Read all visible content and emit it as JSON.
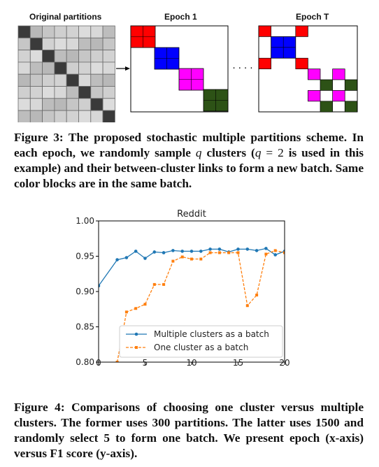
{
  "figure3": {
    "panel_titles": [
      "Original partitions",
      "Epoch 1",
      "Epoch T"
    ],
    "ellipsis": "· · · ·",
    "colors": {
      "red": "#ff0000",
      "blue": "#0000ff",
      "magenta": "#ff00ff",
      "green": "#2d5216",
      "dark": "#3a3a3a"
    },
    "caption": {
      "label": "Figure 3:",
      "part1": " The proposed stochastic multiple partitions scheme. In each epoch, we randomly sample ",
      "q1": "q",
      "part2": " clusters (",
      "q2": "q",
      "eq": " = 2",
      "part3": " is used in this example) and their between-cluster links to form a new batch. Same color blocks are in the same batch."
    }
  },
  "figure4": {
    "caption": "Figure 4: Comparisons of choosing one cluster versus multiple clusters. The former uses 300 partitions. The latter uses 1500 and randomly select 5 to form one batch. We present epoch (x-axis) versus F1 score (y-axis)."
  },
  "chart_data": {
    "type": "line",
    "title": "Reddit",
    "xlabel": "",
    "ylabel": "",
    "xlim": [
      0,
      20
    ],
    "ylim": [
      0.8,
      1.0
    ],
    "x_ticks": [
      "0",
      "5",
      "10",
      "15",
      "20"
    ],
    "y_ticks": [
      "0.80",
      "0.85",
      "0.90",
      "0.95",
      "1.00"
    ],
    "grid": false,
    "legend_position": "lower-right",
    "series": [
      {
        "name": "Multiple clusters as a batch",
        "color": "#1f77b4",
        "style": "solid",
        "marker": "circle",
        "x": [
          0,
          2,
          3,
          4,
          5,
          6,
          7,
          8,
          9,
          10,
          11,
          12,
          13,
          14,
          15,
          16,
          17,
          18,
          19,
          20
        ],
        "y": [
          0.908,
          0.945,
          0.948,
          0.957,
          0.947,
          0.956,
          0.955,
          0.958,
          0.957,
          0.957,
          0.957,
          0.96,
          0.96,
          0.956,
          0.96,
          0.96,
          0.958,
          0.961,
          0.952,
          0.957
        ]
      },
      {
        "name": "One cluster as a batch",
        "color": "#ff7f0e",
        "style": "dashed",
        "marker": "square",
        "x": [
          2,
          3,
          4,
          5,
          6,
          7,
          8,
          9,
          10,
          11,
          12,
          13,
          14,
          15,
          16,
          17,
          18,
          19,
          20
        ],
        "y": [
          0.8,
          0.871,
          0.876,
          0.882,
          0.91,
          0.91,
          0.943,
          0.949,
          0.946,
          0.946,
          0.955,
          0.955,
          0.955,
          0.955,
          0.88,
          0.895,
          0.953,
          0.958,
          0.955
        ]
      }
    ]
  }
}
